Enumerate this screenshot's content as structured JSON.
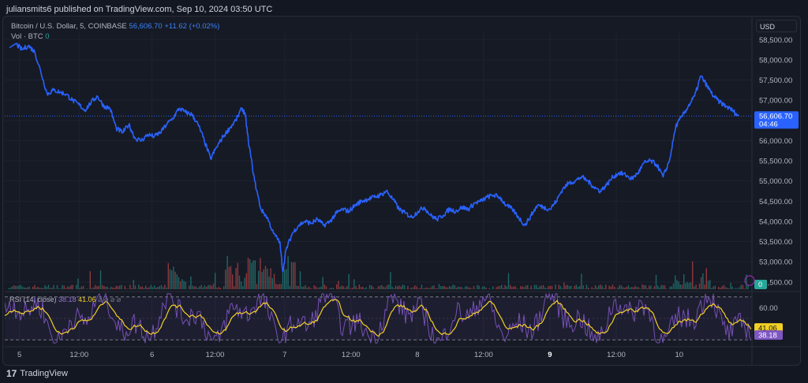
{
  "header": {
    "published_line": "juliansmits6 published on TradingView.com, Sep 10, 2024 03:50 UTC"
  },
  "legend": {
    "symbol": "Bitcoin / U.S. Dollar, 5, COINBASE",
    "price": "56,606.70",
    "change": "+11.62 (+0.02%)",
    "vol_label": "Vol · BTC",
    "vol_value": "0"
  },
  "currency_button": "USD",
  "price_tag": {
    "value": "56,606.70",
    "countdown": "04:46"
  },
  "volume_tag": "0",
  "rsi_legend": {
    "label": "RSI (14, close)",
    "value_rsi": "38.18",
    "value_ma": "41.06",
    "icons": "⌀ ⌀ ⌀ ⌀"
  },
  "footer": {
    "brand": "TradingView",
    "logo_icon": "17"
  },
  "colors": {
    "background": "#131722",
    "price_line": "#2962ff",
    "rsi_line": "#7e57c2",
    "rsi_ma": "#f2d024",
    "volume_up": "#26a69a",
    "volume_down": "#ef5350"
  },
  "chart_data": [
    {
      "type": "line",
      "title": "Bitcoin / U.S. Dollar, 5, COINBASE",
      "y_tick_labels": [
        "58,500.00",
        "58,000.00",
        "57,500.00",
        "57,000.00",
        "56,500.00",
        "56,000.00",
        "55,500.00",
        "55,000.00",
        "54,500.00",
        "54,000.00",
        "53,500.00",
        "53,000.00",
        "52,500.00"
      ],
      "ylim": [
        52300,
        58700
      ],
      "x_tick_labels": [
        "5",
        "12:00",
        "6",
        "12:00",
        "7",
        "12:00",
        "8",
        "12:00",
        "9",
        "12:00",
        "10"
      ],
      "grid": true,
      "series": [
        {
          "points": [
            [
              0,
              58300
            ],
            [
              0.2,
              58400
            ],
            [
              0.4,
              58250
            ],
            [
              0.6,
              58350
            ],
            [
              0.8,
              58200
            ],
            [
              1.0,
              57700
            ],
            [
              1.2,
              57150
            ],
            [
              1.4,
              57250
            ],
            [
              1.6,
              57200
            ],
            [
              1.8,
              57150
            ],
            [
              2.0,
              57000
            ],
            [
              2.2,
              56900
            ],
            [
              2.4,
              56750
            ],
            [
              2.6,
              56950
            ],
            [
              2.8,
              57100
            ],
            [
              3.0,
              56850
            ],
            [
              3.2,
              56800
            ],
            [
              3.4,
              56300
            ],
            [
              3.6,
              56200
            ],
            [
              3.8,
              56400
            ],
            [
              4.0,
              56050
            ],
            [
              4.2,
              56000
            ],
            [
              4.4,
              56150
            ],
            [
              4.6,
              56100
            ],
            [
              4.8,
              56200
            ],
            [
              5.0,
              56400
            ],
            [
              5.2,
              56550
            ],
            [
              5.4,
              56800
            ],
            [
              5.6,
              56700
            ],
            [
              5.8,
              56650
            ],
            [
              6.0,
              56400
            ],
            [
              6.2,
              56000
            ],
            [
              6.4,
              55550
            ],
            [
              6.6,
              55850
            ],
            [
              6.8,
              56100
            ],
            [
              7.0,
              56300
            ],
            [
              7.2,
              56500
            ],
            [
              7.4,
              56800
            ],
            [
              7.5,
              56650
            ],
            [
              7.6,
              56000
            ],
            [
              7.8,
              55000
            ],
            [
              8.0,
              54300
            ],
            [
              8.2,
              54100
            ],
            [
              8.4,
              53700
            ],
            [
              8.6,
              53500
            ],
            [
              8.7,
              52750
            ],
            [
              8.8,
              53300
            ],
            [
              9.0,
              53700
            ],
            [
              9.2,
              53900
            ],
            [
              9.4,
              54000
            ],
            [
              9.6,
              53950
            ],
            [
              9.8,
              54050
            ],
            [
              10.0,
              53900
            ],
            [
              10.2,
              54000
            ],
            [
              10.4,
              54200
            ],
            [
              10.6,
              54300
            ],
            [
              10.8,
              54250
            ],
            [
              11.0,
              54400
            ],
            [
              11.2,
              54500
            ],
            [
              11.4,
              54550
            ],
            [
              11.6,
              54600
            ],
            [
              11.8,
              54650
            ],
            [
              12.0,
              54750
            ],
            [
              12.2,
              54550
            ],
            [
              12.4,
              54300
            ],
            [
              12.6,
              54200
            ],
            [
              12.8,
              54100
            ],
            [
              13.0,
              54250
            ],
            [
              13.2,
              54350
            ],
            [
              13.4,
              54150
            ],
            [
              13.6,
              54050
            ],
            [
              13.8,
              54150
            ],
            [
              14.0,
              54300
            ],
            [
              14.2,
              54250
            ],
            [
              14.4,
              54350
            ],
            [
              14.6,
              54300
            ],
            [
              14.8,
              54450
            ],
            [
              15.0,
              54500
            ],
            [
              15.2,
              54600
            ],
            [
              15.4,
              54650
            ],
            [
              15.6,
              54600
            ],
            [
              15.8,
              54400
            ],
            [
              16.0,
              54300
            ],
            [
              16.2,
              54100
            ],
            [
              16.4,
              53900
            ],
            [
              16.6,
              54150
            ],
            [
              16.8,
              54400
            ],
            [
              17.0,
              54350
            ],
            [
              17.2,
              54300
            ],
            [
              17.4,
              54500
            ],
            [
              17.6,
              54800
            ],
            [
              17.8,
              54950
            ],
            [
              18.0,
              55000
            ],
            [
              18.2,
              55100
            ],
            [
              18.4,
              55000
            ],
            [
              18.6,
              54850
            ],
            [
              18.8,
              54750
            ],
            [
              19.0,
              54900
            ],
            [
              19.2,
              55100
            ],
            [
              19.4,
              55200
            ],
            [
              19.6,
              55150
            ],
            [
              19.8,
              55050
            ],
            [
              20.0,
              55200
            ],
            [
              20.2,
              55450
            ],
            [
              20.4,
              55500
            ],
            [
              20.6,
              55400
            ],
            [
              20.8,
              55100
            ],
            [
              21.0,
              55500
            ],
            [
              21.2,
              56350
            ],
            [
              21.4,
              56600
            ],
            [
              21.6,
              56850
            ],
            [
              21.8,
              57100
            ],
            [
              22.0,
              57600
            ],
            [
              22.2,
              57350
            ],
            [
              22.4,
              57100
            ],
            [
              22.6,
              56950
            ],
            [
              22.8,
              56850
            ],
            [
              23.0,
              56750
            ],
            [
              23.2,
              56606.7
            ]
          ]
        }
      ]
    },
    {
      "type": "line",
      "title": "RSI (14, close)",
      "y_tick_labels": [
        "60.00"
      ],
      "ylim": [
        25,
        75
      ],
      "bands": [
        30,
        70
      ],
      "series": [
        {
          "name": "RSI",
          "last": 38.18
        },
        {
          "name": "RSI-based MA",
          "last": 41.06
        }
      ]
    }
  ]
}
